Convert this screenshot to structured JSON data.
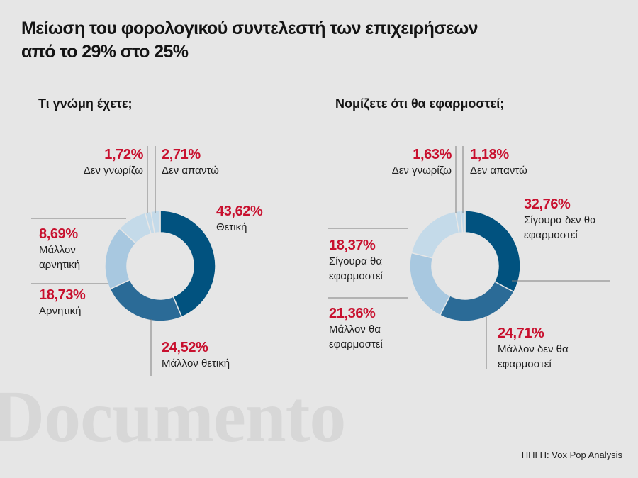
{
  "title_line1": "Μείωση του φορολογικού συντελεστή των επιχειρήσεων",
  "title_line2": "από το 29% στο 25%",
  "source": "ΠΗΓΗ: Vox Pop Analysis",
  "watermark": "Documento",
  "colors": {
    "red_text": "#c8102e",
    "dark_blue": "#01527f",
    "mid_blue": "#2b6b97",
    "light_blue": "#a8c8e0",
    "pale_blue": "#c4dae9",
    "background": "#e6e6e6"
  },
  "chart_data": [
    {
      "type": "pie",
      "title": "Τι γνώμη έχετε;",
      "series": [
        {
          "label": "Θετική",
          "value_text": "43,62%",
          "value": 43.62
        },
        {
          "label": "Μάλλον θετική",
          "value_text": "24,52%",
          "value": 24.52
        },
        {
          "label": "Αρνητική",
          "value_text": "18,73%",
          "value": 18.73
        },
        {
          "label": "Μάλλον αρνητική",
          "value_text": "8,69%",
          "value": 8.69
        },
        {
          "label": "Δεν γνωρίζω",
          "value_text": "1,72%",
          "value": 1.72
        },
        {
          "label": "Δεν απαντώ",
          "value_text": "2,71%",
          "value": 2.71
        }
      ]
    },
    {
      "type": "pie",
      "title": "Νομίζετε ότι θα εφαρμοστεί;",
      "series": [
        {
          "label": "Σίγουρα δεν θα εφαρμοστεί",
          "value_text": "32,76%",
          "value": 32.76
        },
        {
          "label": "Μάλλον δεν θα εφαρμοστεί",
          "value_text": "24,71%",
          "value": 24.71
        },
        {
          "label": "Μάλλον θα εφαρμοστεί",
          "value_text": "21,36%",
          "value": 21.36
        },
        {
          "label": "Σίγουρα θα εφαρμοστεί",
          "value_text": "18,37%",
          "value": 18.37
        },
        {
          "label": "Δεν γνωρίζω",
          "value_text": "1,63%",
          "value": 1.63
        },
        {
          "label": "Δεν απαντώ",
          "value_text": "1,18%",
          "value": 1.18
        }
      ]
    }
  ]
}
